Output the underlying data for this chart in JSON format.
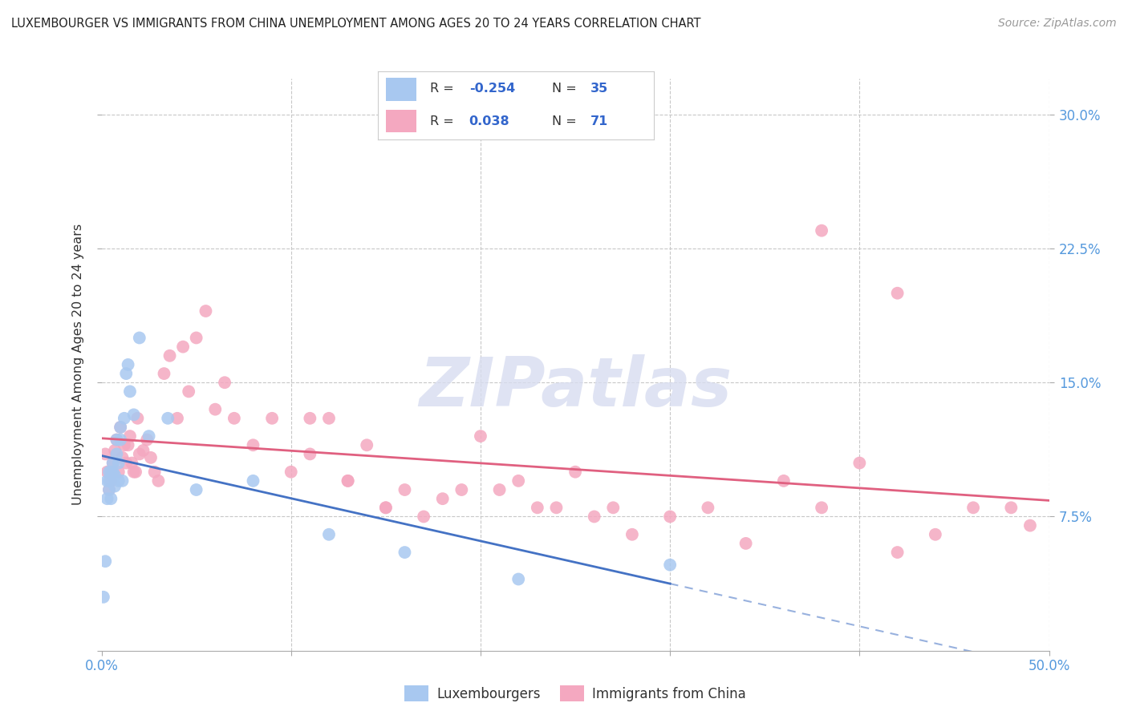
{
  "title": "LUXEMBOURGER VS IMMIGRANTS FROM CHINA UNEMPLOYMENT AMONG AGES 20 TO 24 YEARS CORRELATION CHART",
  "source": "Source: ZipAtlas.com",
  "ylabel": "Unemployment Among Ages 20 to 24 years",
  "x_min": 0.0,
  "x_max": 0.5,
  "y_min": 0.0,
  "y_max": 0.32,
  "bg_color": "#ffffff",
  "grid_color": "#c8c8c8",
  "luxembourger_color": "#a8c8f0",
  "china_color": "#f4a8c0",
  "line_lux_color": "#4472c4",
  "line_china_color": "#e06080",
  "watermark": "ZIPatlas",
  "lux_R": "-0.254",
  "lux_N": "35",
  "china_R": "0.038",
  "china_N": "71",
  "luxembourger_x": [
    0.001,
    0.002,
    0.003,
    0.003,
    0.004,
    0.004,
    0.004,
    0.005,
    0.005,
    0.006,
    0.006,
    0.006,
    0.007,
    0.007,
    0.008,
    0.008,
    0.009,
    0.009,
    0.01,
    0.01,
    0.011,
    0.012,
    0.013,
    0.014,
    0.015,
    0.017,
    0.02,
    0.025,
    0.035,
    0.05,
    0.08,
    0.12,
    0.16,
    0.22,
    0.3
  ],
  "luxembourger_y": [
    0.03,
    0.05,
    0.095,
    0.085,
    0.095,
    0.1,
    0.09,
    0.085,
    0.1,
    0.098,
    0.105,
    0.1,
    0.098,
    0.092,
    0.11,
    0.118,
    0.105,
    0.095,
    0.125,
    0.118,
    0.095,
    0.13,
    0.155,
    0.16,
    0.145,
    0.132,
    0.175,
    0.12,
    0.13,
    0.09,
    0.095,
    0.065,
    0.055,
    0.04,
    0.048
  ],
  "china_x": [
    0.002,
    0.003,
    0.004,
    0.005,
    0.006,
    0.007,
    0.008,
    0.009,
    0.01,
    0.011,
    0.012,
    0.013,
    0.014,
    0.015,
    0.016,
    0.017,
    0.018,
    0.019,
    0.02,
    0.022,
    0.024,
    0.026,
    0.028,
    0.03,
    0.033,
    0.036,
    0.04,
    0.043,
    0.046,
    0.05,
    0.055,
    0.06,
    0.065,
    0.07,
    0.08,
    0.09,
    0.1,
    0.11,
    0.12,
    0.13,
    0.14,
    0.15,
    0.16,
    0.17,
    0.18,
    0.2,
    0.22,
    0.24,
    0.26,
    0.28,
    0.3,
    0.32,
    0.34,
    0.36,
    0.38,
    0.4,
    0.42,
    0.44,
    0.46,
    0.48,
    0.49,
    0.38,
    0.42,
    0.25,
    0.27,
    0.19,
    0.21,
    0.23,
    0.11,
    0.13,
    0.15
  ],
  "china_y": [
    0.11,
    0.1,
    0.09,
    0.095,
    0.105,
    0.112,
    0.118,
    0.1,
    0.125,
    0.108,
    0.115,
    0.105,
    0.115,
    0.12,
    0.105,
    0.1,
    0.1,
    0.13,
    0.11,
    0.112,
    0.118,
    0.108,
    0.1,
    0.095,
    0.155,
    0.165,
    0.13,
    0.17,
    0.145,
    0.175,
    0.19,
    0.135,
    0.15,
    0.13,
    0.115,
    0.13,
    0.1,
    0.13,
    0.13,
    0.095,
    0.115,
    0.08,
    0.09,
    0.075,
    0.085,
    0.12,
    0.095,
    0.08,
    0.075,
    0.065,
    0.075,
    0.08,
    0.06,
    0.095,
    0.08,
    0.105,
    0.055,
    0.065,
    0.08,
    0.08,
    0.07,
    0.235,
    0.2,
    0.1,
    0.08,
    0.09,
    0.09,
    0.08,
    0.11,
    0.095,
    0.08
  ]
}
